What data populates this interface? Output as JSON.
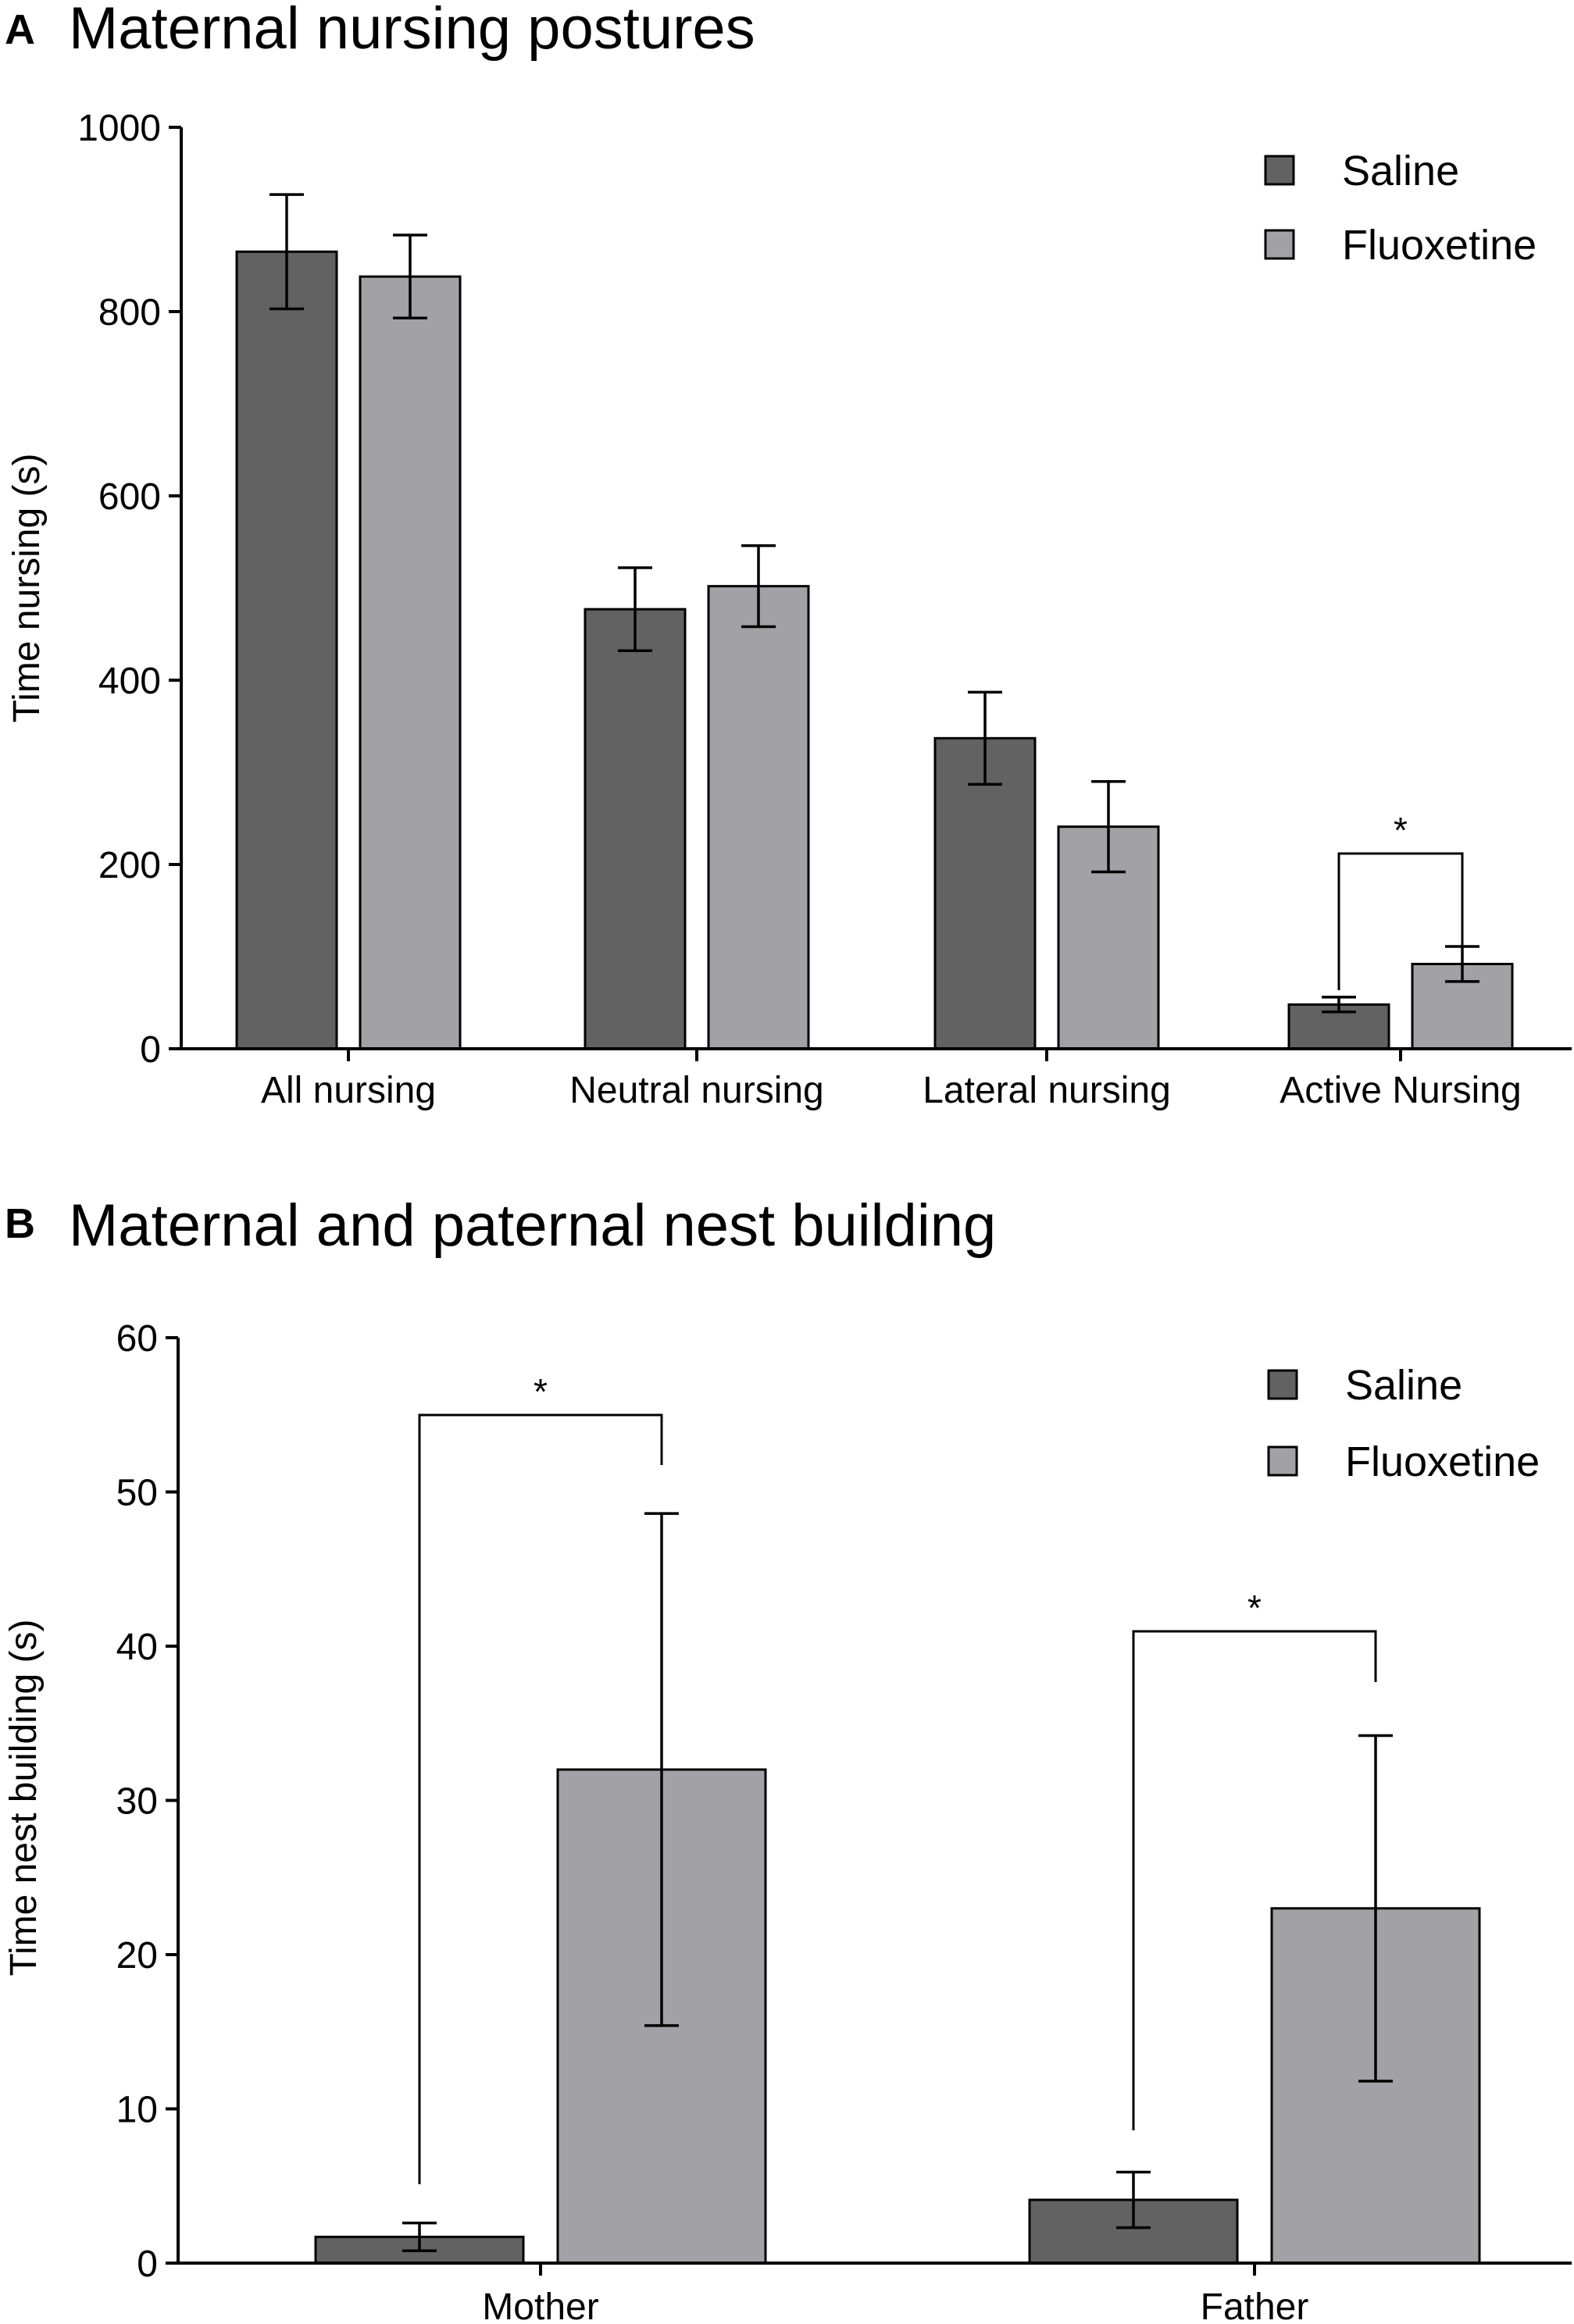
{
  "legend": {
    "saline_label": "Saline",
    "fluoxetine_label": "Fluoxetine",
    "saline_color": "#626262",
    "fluoxetine_color": "#a2a2a6"
  },
  "chart_data": [
    {
      "panel": "A",
      "type": "bar",
      "title": "Maternal nursing postures",
      "xlabel": "",
      "ylabel": "Time nursing (s)",
      "ylim": [
        0,
        1000
      ],
      "yticks": [
        0,
        200,
        400,
        600,
        800,
        1000
      ],
      "categories": [
        "All nursing",
        "Neutral nursing",
        "Lateral nursing",
        "Active Nursing"
      ],
      "series": [
        {
          "name": "Saline",
          "values": [
            865,
            477,
            337,
            48
          ],
          "error": [
            62,
            45,
            50,
            8
          ]
        },
        {
          "name": "Fluoxetine",
          "values": [
            838,
            502,
            241,
            92
          ],
          "error": [
            45,
            44,
            49,
            19
          ]
        }
      ],
      "significance": [
        {
          "category": "Active Nursing",
          "label": "*"
        }
      ]
    },
    {
      "panel": "B",
      "type": "bar",
      "title": "Maternal and paternal nest building",
      "xlabel": "",
      "ylabel": "Time nest building (s)",
      "ylim": [
        0,
        60
      ],
      "yticks": [
        0,
        10,
        20,
        30,
        40,
        50,
        60
      ],
      "categories": [
        "Mother",
        "Father"
      ],
      "series": [
        {
          "name": "Saline",
          "values": [
            1.7,
            4.1
          ],
          "error": [
            0.9,
            1.8
          ]
        },
        {
          "name": "Fluoxetine",
          "values": [
            32,
            23
          ],
          "error": [
            16.6,
            11.2
          ]
        }
      ],
      "significance": [
        {
          "category": "Mother",
          "label": "*"
        },
        {
          "category": "Father",
          "label": "*"
        }
      ]
    }
  ]
}
